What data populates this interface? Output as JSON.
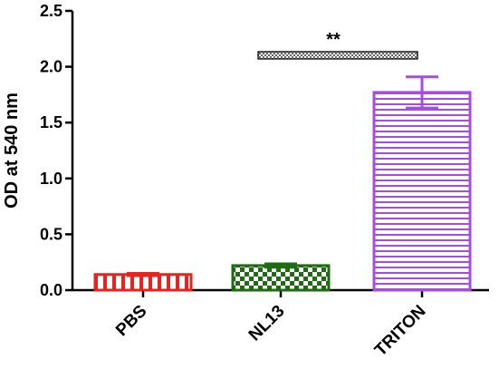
{
  "chart_data": {
    "type": "bar",
    "title": "",
    "xlabel": "",
    "ylabel": "OD at 540 nm",
    "ylim": [
      0,
      2.5
    ],
    "yticks": [
      "0.0",
      "0.5",
      "1.0",
      "1.5",
      "2.0",
      "2.5"
    ],
    "categories": [
      "PBS",
      "NL13",
      "TRITON"
    ],
    "values": [
      0.14,
      0.22,
      1.77
    ],
    "errors": [
      0.01,
      0.015,
      0.14
    ],
    "colors": [
      "#e8231f",
      "#1f6b12",
      "#a84ce0"
    ],
    "patterns": [
      "vertical-stripes",
      "checker",
      "horizontal-stripes"
    ],
    "significance": {
      "label": "**",
      "from": "NL13",
      "to": "TRITON"
    },
    "grid": false,
    "legend": "none"
  }
}
